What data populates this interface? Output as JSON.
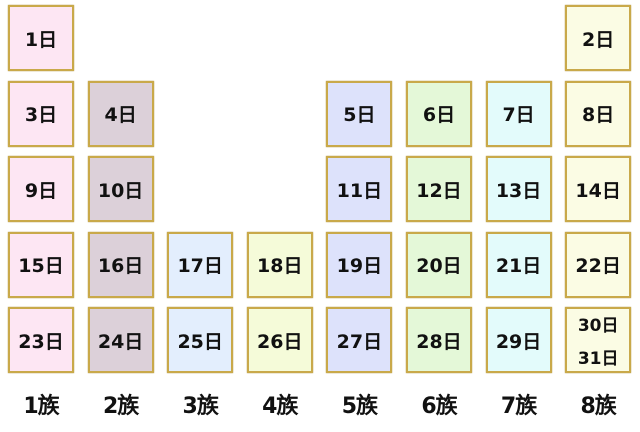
{
  "border_color": "#c9a94a",
  "columns": [
    {
      "label": "1族",
      "color": "#fde6f3",
      "cells": [
        [
          "1日"
        ],
        [
          "3日"
        ],
        [
          "9日"
        ],
        [
          "15日"
        ],
        [
          "23日"
        ]
      ]
    },
    {
      "label": "2族",
      "color": "#dcd0d9",
      "cells": [
        null,
        [
          "4日"
        ],
        [
          "10日"
        ],
        [
          "16日"
        ],
        [
          "24日"
        ]
      ]
    },
    {
      "label": "3族",
      "color": "#e3eefd",
      "cells": [
        null,
        null,
        null,
        [
          "17日"
        ],
        [
          "25日"
        ]
      ]
    },
    {
      "label": "4族",
      "color": "#f5fbd9",
      "cells": [
        null,
        null,
        null,
        [
          "18日"
        ],
        [
          "26日"
        ]
      ]
    },
    {
      "label": "5族",
      "color": "#dde2fb",
      "cells": [
        null,
        [
          "5日"
        ],
        [
          "11日"
        ],
        [
          "19日"
        ],
        [
          "27日"
        ]
      ]
    },
    {
      "label": "6族",
      "color": "#e4f8d8",
      "cells": [
        null,
        [
          "6日"
        ],
        [
          "12日"
        ],
        [
          "20日"
        ],
        [
          "28日"
        ]
      ]
    },
    {
      "label": "7族",
      "color": "#e3fbfb",
      "cells": [
        null,
        [
          "7日"
        ],
        [
          "13日"
        ],
        [
          "21日"
        ],
        [
          "29日"
        ]
      ]
    },
    {
      "label": "8族",
      "color": "#fbfce4",
      "cells": [
        [
          "2日"
        ],
        [
          "8日"
        ],
        [
          "14日"
        ],
        [
          "22日"
        ],
        [
          "30日",
          "31日"
        ]
      ]
    }
  ]
}
